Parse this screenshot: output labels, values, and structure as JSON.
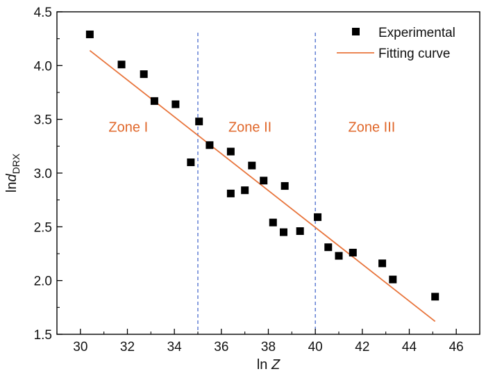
{
  "colors": {
    "marker": "#000000",
    "fit_line": "#e8743b",
    "zone_text": "#e0672a",
    "divider": "#3a5fc8",
    "axis": "#000000"
  },
  "chart_data": {
    "type": "scatter",
    "xlabel": {
      "prefix": "ln ",
      "var": "Z"
    },
    "ylabel": {
      "prefix": "ln",
      "var": "d",
      "sub": "DRX"
    },
    "xlim": [
      29,
      47
    ],
    "ylim": [
      1.5,
      4.5
    ],
    "xticks": [
      "30",
      "32",
      "34",
      "36",
      "38",
      "40",
      "42",
      "44",
      "46"
    ],
    "yticks": [
      "1.5",
      "2.0",
      "2.5",
      "3.0",
      "3.5",
      "4.0",
      "4.5"
    ],
    "series": [
      {
        "name": "Experimental",
        "marker": "square",
        "x": [
          30.4,
          31.75,
          32.7,
          33.15,
          34.05,
          34.7,
          35.05,
          35.5,
          36.4,
          36.4,
          37.0,
          37.3,
          37.8,
          38.2,
          38.7,
          38.65,
          39.35,
          40.1,
          40.55,
          41.0,
          41.6,
          42.85,
          43.3,
          45.1
        ],
        "y": [
          4.29,
          4.01,
          3.92,
          3.67,
          3.64,
          3.1,
          3.48,
          3.26,
          3.2,
          2.81,
          2.84,
          3.07,
          2.93,
          2.54,
          2.88,
          2.45,
          2.46,
          2.59,
          2.31,
          2.23,
          2.26,
          2.16,
          2.01,
          1.85
        ]
      },
      {
        "name": "Fitting curve",
        "type": "line",
        "x": [
          30.4,
          45.1
        ],
        "y": [
          4.14,
          1.62
        ]
      }
    ],
    "dividers": [
      35.0,
      40.0
    ],
    "zones": [
      {
        "label": "Zone I",
        "x": 31.2,
        "y": 3.43
      },
      {
        "label": "Zone II",
        "x": 36.3,
        "y": 3.43
      },
      {
        "label": "Zone III",
        "x": 41.4,
        "y": 3.43
      }
    ],
    "legend_placement": "top-right",
    "grid": false
  }
}
